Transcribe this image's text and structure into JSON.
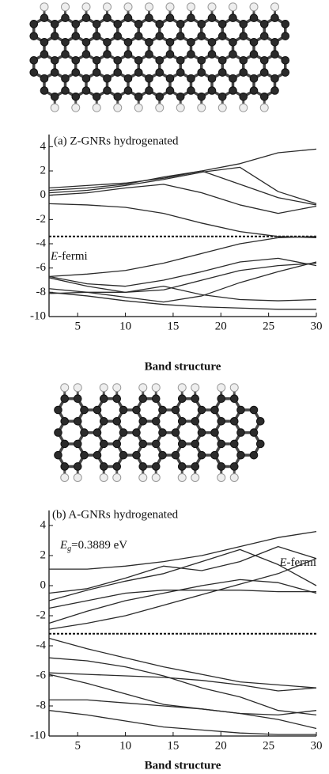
{
  "chart_data": [
    {
      "type": "line",
      "title": "(a) Z-GNRs hydrogenated",
      "xlabel": "Band structure",
      "x": [
        2,
        6,
        10,
        14,
        18,
        22,
        26,
        30
      ],
      "xlim": [
        2,
        30
      ],
      "xticks": [
        5,
        10,
        15,
        20,
        25,
        30
      ],
      "ylim": [
        -10,
        5
      ],
      "yticks": [
        -10,
        -8,
        -6,
        -4,
        -2,
        0,
        2,
        4
      ],
      "color": "#2a2a2a",
      "fermi_level": -3.4,
      "fermi_label": {
        "symbol": "E",
        "text": "-fermi"
      },
      "series": [
        {
          "values": [
            0.6,
            0.8,
            1.0,
            1.4,
            2.0,
            2.6,
            3.5,
            3.8
          ]
        },
        {
          "values": [
            0.4,
            0.6,
            0.9,
            1.5,
            2.0,
            0.9,
            -0.2,
            -0.8
          ]
        },
        {
          "values": [
            0.2,
            0.4,
            0.8,
            1.3,
            1.9,
            2.3,
            0.3,
            -0.7
          ]
        },
        {
          "values": [
            0.0,
            0.2,
            0.6,
            0.9,
            0.2,
            -0.8,
            -1.5,
            -0.9
          ]
        },
        {
          "values": [
            -0.7,
            -0.8,
            -1.0,
            -1.5,
            -2.3,
            -3.0,
            -3.4,
            -3.5
          ]
        },
        {
          "values": [
            -6.7,
            -6.5,
            -6.2,
            -5.6,
            -4.8,
            -4.0,
            -3.5,
            -3.4
          ]
        },
        {
          "values": [
            -6.7,
            -7.3,
            -7.5,
            -7.0,
            -6.3,
            -5.5,
            -5.2,
            -5.8
          ]
        },
        {
          "values": [
            -6.8,
            -7.5,
            -8.0,
            -7.8,
            -7.0,
            -6.2,
            -5.8,
            -5.6
          ]
        },
        {
          "values": [
            -7.7,
            -8.0,
            -8.0,
            -7.5,
            -8.2,
            -8.6,
            -8.7,
            -8.6
          ]
        },
        {
          "values": [
            -8.1,
            -8.0,
            -8.4,
            -8.8,
            -8.3,
            -7.2,
            -6.3,
            -5.5
          ]
        },
        {
          "values": [
            -8.0,
            -8.3,
            -8.7,
            -9.0,
            -9.2,
            -9.3,
            -9.4,
            -9.4
          ]
        }
      ]
    },
    {
      "type": "line",
      "title": "(b) A-GNRs hydrogenated",
      "xlabel": "Band structure",
      "x": [
        2,
        6,
        10,
        14,
        18,
        22,
        26,
        30
      ],
      "xlim": [
        2,
        30
      ],
      "xticks": [
        5,
        10,
        15,
        20,
        25,
        30
      ],
      "ylim": [
        -10,
        5
      ],
      "yticks": [
        -10,
        -8,
        -6,
        -4,
        -2,
        0,
        2,
        4
      ],
      "color": "#2a2a2a",
      "fermi_level": -3.2,
      "fermi_label": {
        "symbol": "E",
        "text": "-fermi"
      },
      "gap_label": {
        "symbol": "E",
        "subscript": "g",
        "text": "=0.3889 eV"
      },
      "series": [
        {
          "values": [
            1.1,
            1.1,
            1.3,
            1.6,
            2.0,
            2.6,
            3.2,
            3.6
          ]
        },
        {
          "values": [
            -0.5,
            -0.2,
            0.5,
            1.3,
            1.0,
            1.6,
            2.6,
            1.8
          ]
        },
        {
          "values": [
            -1.0,
            -0.3,
            0.3,
            0.8,
            1.6,
            2.4,
            1.4,
            0.0
          ]
        },
        {
          "values": [
            -1.5,
            -1.0,
            -0.5,
            -0.3,
            -0.3,
            -0.3,
            -0.4,
            -0.4
          ]
        },
        {
          "values": [
            -2.5,
            -1.7,
            -1.0,
            -0.5,
            0.0,
            0.4,
            0.2,
            -0.5
          ]
        },
        {
          "values": [
            -2.9,
            -2.5,
            -2.0,
            -1.3,
            -0.6,
            0.1,
            0.8,
            1.8
          ]
        },
        {
          "values": [
            -3.5,
            -4.2,
            -4.8,
            -5.4,
            -5.9,
            -6.4,
            -6.6,
            -6.8
          ]
        },
        {
          "values": [
            -4.8,
            -5.0,
            -5.4,
            -6.0,
            -6.8,
            -7.4,
            -8.3,
            -8.6
          ]
        },
        {
          "values": [
            -5.8,
            -5.9,
            -6.0,
            -6.1,
            -6.3,
            -6.6,
            -7.0,
            -6.8
          ]
        },
        {
          "values": [
            -5.9,
            -6.5,
            -7.2,
            -7.9,
            -8.2,
            -8.5,
            -8.9,
            -9.5
          ]
        },
        {
          "values": [
            -7.6,
            -7.6,
            -7.8,
            -8.0,
            -8.2,
            -8.5,
            -8.6,
            -8.3
          ]
        },
        {
          "values": [
            -8.3,
            -8.6,
            -9.0,
            -9.4,
            -9.6,
            -9.8,
            -9.9,
            -9.9
          ]
        }
      ]
    }
  ]
}
